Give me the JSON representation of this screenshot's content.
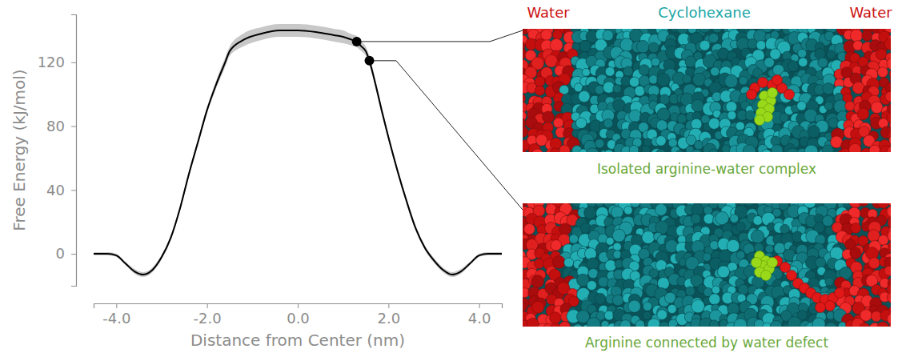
{
  "chart_data": {
    "type": "line",
    "xlabel": "Distance from Center (nm)",
    "ylabel": "Free Energy (kJ/mol)",
    "color": "#000000",
    "x": [
      -4.5,
      -4.2,
      -4.0,
      -3.8,
      -3.6,
      -3.4,
      -3.2,
      -3.0,
      -2.8,
      -2.6,
      -2.4,
      -2.2,
      -2.0,
      -1.8,
      -1.6,
      -1.5,
      -1.2,
      -0.8,
      -0.4,
      0.0,
      0.4,
      0.8,
      1.0,
      1.2,
      1.3,
      1.4,
      1.5,
      1.58,
      1.7,
      1.85,
      2.0,
      2.2,
      2.4,
      2.6,
      2.8,
      3.0,
      3.2,
      3.4,
      3.6,
      3.8,
      4.0,
      4.2,
      4.5
    ],
    "values": [
      0,
      0,
      -1,
      -6,
      -11,
      -13,
      -10,
      -2,
      10,
      28,
      50,
      70,
      90,
      106,
      120,
      127,
      134,
      138,
      140,
      140,
      139,
      137,
      136,
      134,
      133,
      130,
      127,
      121,
      108,
      90,
      73,
      52,
      33,
      16,
      4,
      -4,
      -10,
      -13,
      -11,
      -6,
      -1,
      0,
      0
    ],
    "error": [
      1,
      1,
      1,
      1,
      1.5,
      1.5,
      1.5,
      1.5,
      1.5,
      1.5,
      2,
      2,
      2,
      2.5,
      3,
      3,
      4,
      4,
      4,
      4,
      4,
      4,
      4,
      3.5,
      3.5,
      3,
      3,
      3,
      2.5,
      2.5,
      2,
      2,
      2,
      1.5,
      1.5,
      1.5,
      1.5,
      1.5,
      1.5,
      1,
      1,
      1,
      1
    ],
    "xlim": [
      -4.5,
      4.5
    ],
    "ylim": [
      -20,
      150
    ],
    "xticks": [
      {
        "value": -4,
        "label": "-4.0"
      },
      {
        "value": -2,
        "label": "-2.0"
      },
      {
        "value": 0,
        "label": "0.0"
      },
      {
        "value": 2,
        "label": "2.0"
      },
      {
        "value": 4,
        "label": "4.0"
      }
    ],
    "yticks": [
      0,
      40,
      80,
      120
    ],
    "grid": false,
    "headers": [
      "Water",
      "Cyclohexane",
      "Water"
    ],
    "highlights": [
      {
        "x": 1.3,
        "y": 133,
        "caption": "Isolated arginine-water complex"
      },
      {
        "x": 1.58,
        "y": 121,
        "caption": "Arginine connected by water defect"
      }
    ]
  }
}
